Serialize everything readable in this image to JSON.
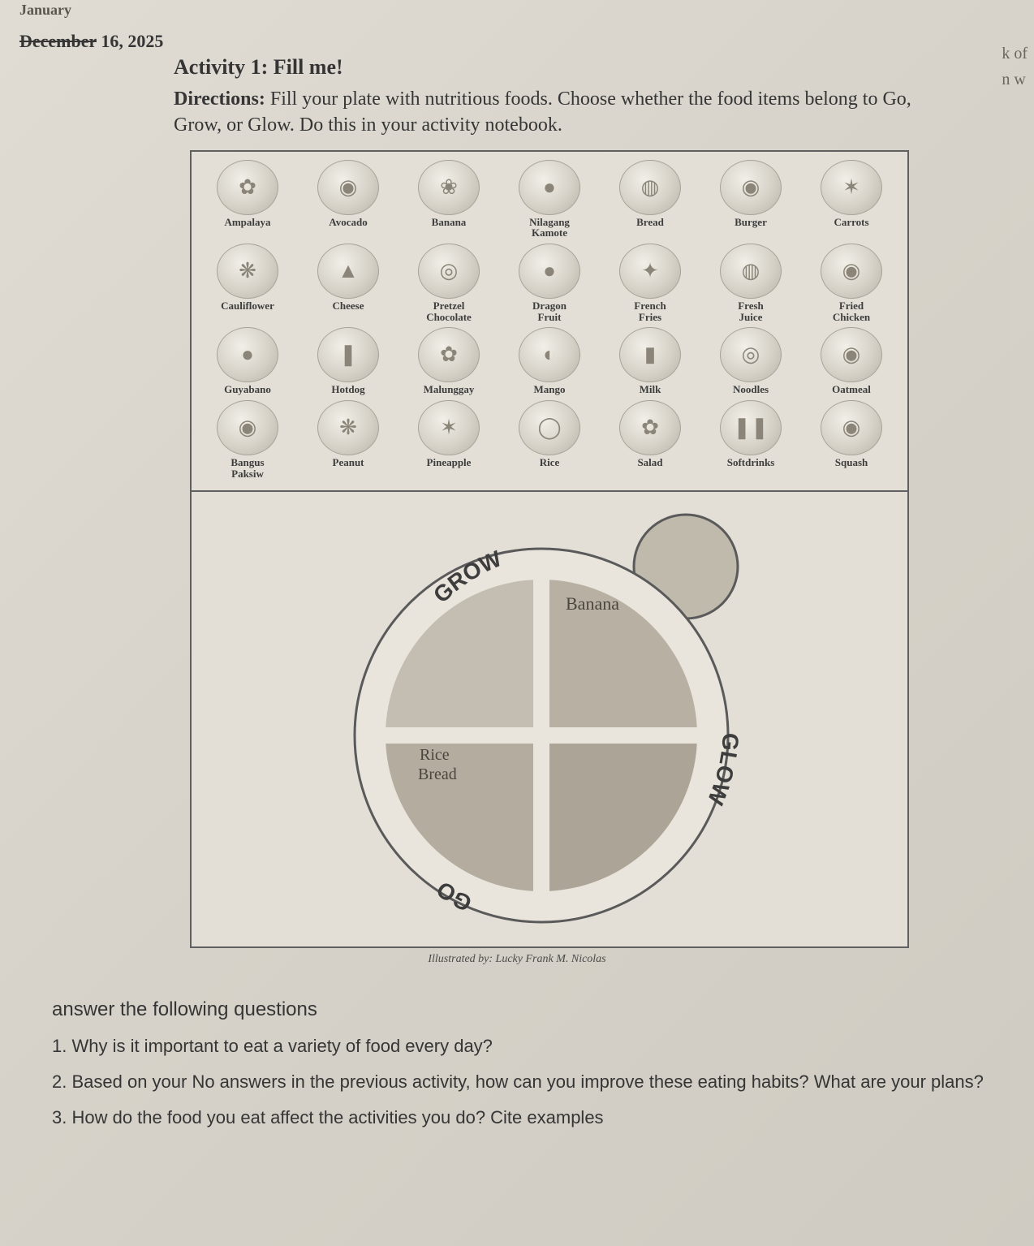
{
  "date": {
    "struck": "December",
    "rest": " 16, 2025",
    "handwritten_above": "January"
  },
  "activity": {
    "title": "Activity 1: Fill me!",
    "directions_label": "Directions:",
    "directions_text": " Fill your plate with nutritious foods. Choose whether the food items belong to Go, Grow, or Glow. Do this in your activity notebook."
  },
  "edge_fragments": "k of\nn w",
  "foods": [
    {
      "label": "Ampalaya",
      "glyph": "✿"
    },
    {
      "label": "Avocado",
      "glyph": "◉"
    },
    {
      "label": "Banana",
      "glyph": "❀"
    },
    {
      "label": "Nilagang\nKamote",
      "glyph": "●"
    },
    {
      "label": "Bread",
      "glyph": "◍"
    },
    {
      "label": "Burger",
      "glyph": "◉"
    },
    {
      "label": "Carrots",
      "glyph": "✶"
    },
    {
      "label": "Cauliflower",
      "glyph": "❋"
    },
    {
      "label": "Cheese",
      "glyph": "▲"
    },
    {
      "label": "Pretzel\nChocolate",
      "glyph": "◎"
    },
    {
      "label": "Dragon\nFruit",
      "glyph": "●"
    },
    {
      "label": "French\nFries",
      "glyph": "✦"
    },
    {
      "label": "Fresh\nJuice",
      "glyph": "◍"
    },
    {
      "label": "Fried\nChicken",
      "glyph": "◉"
    },
    {
      "label": "Guyabano",
      "glyph": "●"
    },
    {
      "label": "Hotdog",
      "glyph": "❚"
    },
    {
      "label": "Malunggay",
      "glyph": "✿"
    },
    {
      "label": "Mango",
      "glyph": "◐"
    },
    {
      "label": "Milk",
      "glyph": "▮"
    },
    {
      "label": "Noodles",
      "glyph": "◎"
    },
    {
      "label": "Oatmeal",
      "glyph": "◉"
    },
    {
      "label": "Bangus\nPaksiw",
      "glyph": "◉"
    },
    {
      "label": "Peanut",
      "glyph": "❋"
    },
    {
      "label": "Pineapple",
      "glyph": "✶"
    },
    {
      "label": "Rice",
      "glyph": "◯"
    },
    {
      "label": "Salad",
      "glyph": "✿"
    },
    {
      "label": "Softdrinks",
      "glyph": "❚❚"
    },
    {
      "label": "Squash",
      "glyph": "◉"
    }
  ],
  "plate": {
    "labels": {
      "grow": "GROW",
      "go": "GO",
      "glow": "GLOW"
    },
    "handwritten": {
      "top_right": "Banana",
      "left_go_1": "Rice",
      "left_go_2": "Bread"
    },
    "colors": {
      "ring": "#5a5a5a",
      "quad_tl": "#c4beb2",
      "quad_tr": "#b8b1a3",
      "quad_bl": "#b4ad9f",
      "quad_br": "#aca597",
      "divider": "#e9e5dc",
      "cup": "#c0baad"
    }
  },
  "credit": "Illustrated by: Lucky Frank M. Nicolas",
  "questions": {
    "heading": "answer the following questions",
    "items": [
      "1. Why is it important to eat a variety of food every day?",
      "2. Based on your No answers in the previous activity, how can you improve these eating habits? What are your plans?",
      "3. How do the food you eat affect the activities you do? Cite examples"
    ]
  }
}
